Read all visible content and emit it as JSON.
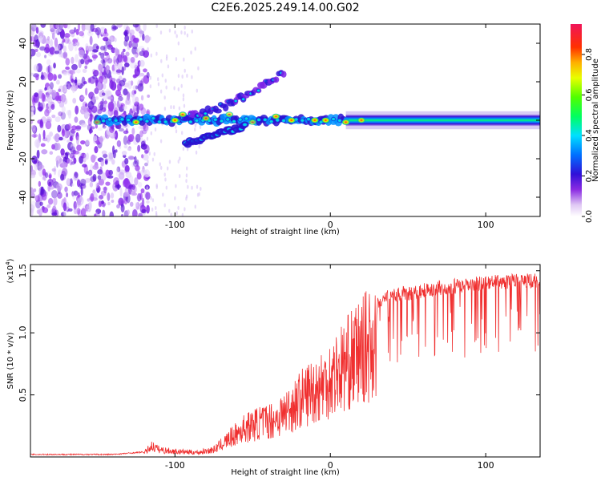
{
  "chart_data": [
    {
      "type": "heatmap",
      "title": "C2E6.2025.249.14.00.G02",
      "xlabel": "Height of straight line (km)",
      "ylabel": "Frequency (Hz)",
      "xlim": [
        -193,
        135
      ],
      "ylim": [
        -50,
        50
      ],
      "x_ticks": [
        -100,
        0,
        100
      ],
      "y_ticks": [
        -40,
        -20,
        0,
        20,
        40
      ],
      "colorbar": {
        "label": "Normalized spectral amplitude",
        "range": [
          0,
          0.95
        ],
        "ticks": [
          0.0,
          0.2,
          0.4,
          0.6,
          0.8
        ]
      },
      "features": [
        {
          "name": "main-band",
          "x_start": 10,
          "x_end": 135,
          "center_hz": 0,
          "half_width_hz": 3,
          "amplitude": 0.45
        },
        {
          "name": "main-band-west",
          "x_start": -150,
          "x_end": 10,
          "center_hz": 0,
          "half_width_hz": 2,
          "amplitude": 0.55
        },
        {
          "name": "noise-region",
          "x_start": -193,
          "x_end": -125,
          "amplitude": 0.05
        },
        {
          "name": "upper-branch",
          "x_start": -95,
          "x_end": -30,
          "start_hz": 2,
          "end_hz": 25,
          "amplitude": 0.3
        },
        {
          "name": "lower-branch",
          "x_start": -93,
          "x_end": -55,
          "start_hz": -12,
          "end_hz": -3,
          "amplitude": 0.35
        }
      ],
      "hotspots": [
        {
          "x": -150,
          "y": -1,
          "v": 0.5
        },
        {
          "x": -125,
          "y": -1,
          "v": 0.85
        },
        {
          "x": -100,
          "y": 0,
          "v": 0.9
        },
        {
          "x": -95,
          "y": 3,
          "v": 0.75
        },
        {
          "x": -80,
          "y": 1,
          "v": 0.7
        },
        {
          "x": -65,
          "y": 3,
          "v": 0.6
        },
        {
          "x": -50,
          "y": -1,
          "v": 0.55
        },
        {
          "x": -35,
          "y": 2,
          "v": 0.8
        },
        {
          "x": -25,
          "y": 0,
          "v": 0.95
        },
        {
          "x": -10,
          "y": 0,
          "v": 0.9
        },
        {
          "x": -3,
          "y": 0,
          "v": 0.92
        },
        {
          "x": 10,
          "y": -1,
          "v": 0.85
        },
        {
          "x": 20,
          "y": 0,
          "v": 0.8
        }
      ]
    },
    {
      "type": "line",
      "xlabel": "Height of straight line (km)",
      "ylabel": "SNR (10 * v/v)",
      "yscale_label": "(x10",
      "yscale_exp": "4",
      "xlim": [
        -193,
        135
      ],
      "ylim": [
        0,
        1.55
      ],
      "x_ticks": [
        -100,
        0,
        100
      ],
      "y_ticks": [
        0.5,
        1.0,
        1.5
      ],
      "series": [
        {
          "name": "SNR",
          "color": "#f03030",
          "envelope_x": [
            -193,
            -140,
            -120,
            -115,
            -110,
            -100,
            -85,
            -75,
            -65,
            -55,
            -45,
            -35,
            -25,
            -15,
            -5,
            5,
            15,
            25,
            35,
            50,
            70,
            90,
            110,
            135
          ],
          "envelope_y": [
            0.02,
            0.02,
            0.04,
            0.12,
            0.08,
            0.06,
            0.05,
            0.08,
            0.2,
            0.32,
            0.38,
            0.42,
            0.55,
            0.7,
            0.8,
            0.95,
            1.1,
            1.25,
            1.35,
            1.38,
            1.42,
            1.45,
            1.47,
            1.48
          ]
        }
      ]
    }
  ]
}
